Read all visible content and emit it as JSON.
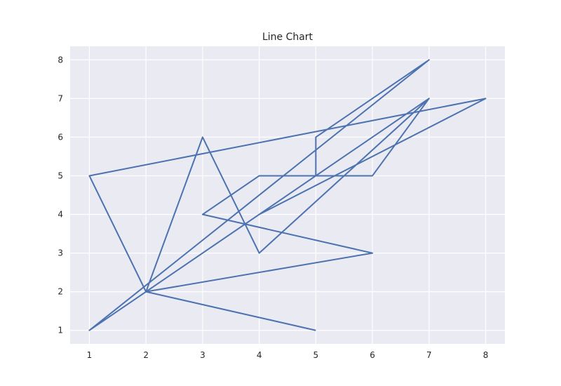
{
  "chart_data": {
    "type": "line",
    "title": "Line Chart",
    "xlabel": "",
    "ylabel": "",
    "grid": true,
    "xlim": [
      0.66,
      8.34
    ],
    "ylim": [
      0.65,
      8.35
    ],
    "xticks": [
      "1",
      "2",
      "3",
      "4",
      "5",
      "6",
      "7",
      "8"
    ],
    "yticks": [
      "1",
      "2",
      "3",
      "4",
      "5",
      "6",
      "7",
      "8"
    ],
    "colors": {
      "line": "#4c72b0",
      "plot_background": "#eaeaf2",
      "grid": "#ffffff",
      "text": "#262626"
    },
    "series": [
      {
        "x": [
          5,
          2,
          1,
          8,
          4,
          7,
          6,
          4,
          3,
          6,
          2,
          1,
          5,
          5,
          7,
          1,
          2,
          4,
          7,
          2,
          3,
          4,
          7
        ],
        "y": [
          1,
          2,
          5,
          7,
          4,
          7,
          5,
          5,
          4,
          3,
          2,
          1,
          5,
          6,
          8,
          1,
          2,
          4,
          7,
          2,
          6,
          3,
          7
        ]
      }
    ]
  }
}
